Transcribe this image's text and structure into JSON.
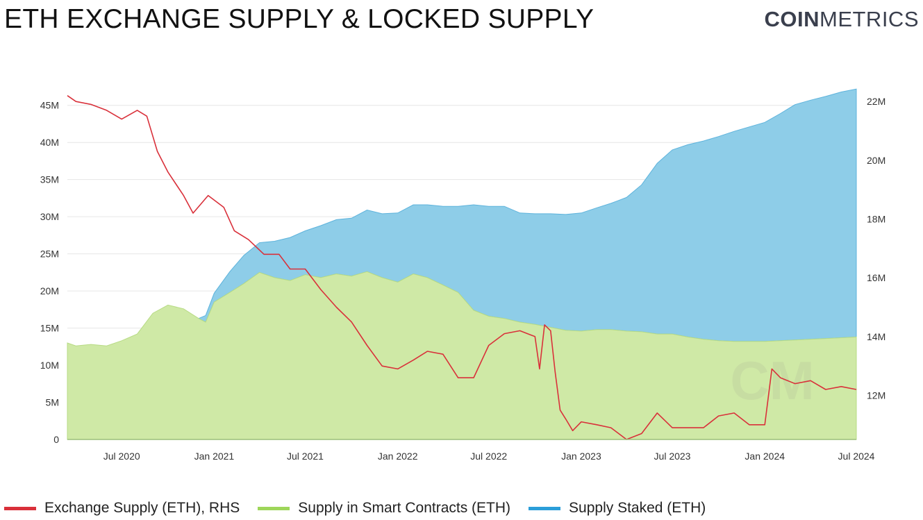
{
  "header": {
    "title": "ETH EXCHANGE SUPPLY & LOCKED SUPPLY",
    "logo_bold": "COIN",
    "logo_light": "METRICS"
  },
  "colors": {
    "exchange": "#d9303a",
    "contracts": "#cfe9a6",
    "contracts_legend": "#9ed65a",
    "staked": "#8ecde8",
    "staked_legend": "#2b9ed9",
    "grid": "#e6e6e6",
    "axis": "#666666"
  },
  "chart_data": {
    "type": "area",
    "title": "ETH EXCHANGE SUPPLY & LOCKED SUPPLY",
    "x_tick_labels": [
      "Jul 2020",
      "Jan 2021",
      "Jul 2021",
      "Jan 2022",
      "Jul 2022",
      "Jan 2023",
      "Jul 2023",
      "Jan 2024",
      "Jul 2024"
    ],
    "x_ticks": [
      "2020-07-01",
      "2021-01-01",
      "2021-07-01",
      "2022-01-01",
      "2022-07-01",
      "2023-01-01",
      "2023-07-01",
      "2024-01-01",
      "2024-07-01"
    ],
    "x_range": [
      "2020-03-15",
      "2024-07-01"
    ],
    "y_left": {
      "ticks": [
        0,
        5,
        10,
        15,
        20,
        25,
        30,
        35,
        40,
        45
      ],
      "tick_labels": [
        "0",
        "5M",
        "10M",
        "15M",
        "20M",
        "25M",
        "30M",
        "35M",
        "40M",
        "45M"
      ],
      "range": [
        0,
        47.5
      ],
      "unit": "M"
    },
    "y_right": {
      "ticks": [
        12,
        14,
        16,
        18,
        20,
        22
      ],
      "tick_labels": [
        "12M",
        "14M",
        "16M",
        "18M",
        "20M",
        "22M"
      ],
      "range": [
        10.5,
        22.5
      ],
      "unit": "M"
    },
    "grid": true,
    "legend_position": "bottom",
    "stacked": true,
    "series": [
      {
        "name": "Supply in Smart Contracts (ETH)",
        "axis": "left",
        "kind": "area",
        "points": [
          [
            "2020-03-15",
            13.0
          ],
          [
            "2020-04-01",
            12.6
          ],
          [
            "2020-05-01",
            12.8
          ],
          [
            "2020-06-01",
            12.6
          ],
          [
            "2020-07-01",
            13.3
          ],
          [
            "2020-08-01",
            14.2
          ],
          [
            "2020-09-01",
            17.0
          ],
          [
            "2020-10-01",
            18.1
          ],
          [
            "2020-11-01",
            17.6
          ],
          [
            "2020-12-01",
            16.3
          ],
          [
            "2020-12-15",
            15.8
          ],
          [
            "2021-01-01",
            18.5
          ],
          [
            "2021-02-01",
            19.8
          ],
          [
            "2021-03-01",
            21.0
          ],
          [
            "2021-04-01",
            22.5
          ],
          [
            "2021-05-01",
            21.8
          ],
          [
            "2021-06-01",
            21.4
          ],
          [
            "2021-07-01",
            22.2
          ],
          [
            "2021-08-01",
            21.8
          ],
          [
            "2021-09-01",
            22.3
          ],
          [
            "2021-10-01",
            22.0
          ],
          [
            "2021-11-01",
            22.6
          ],
          [
            "2021-12-01",
            21.8
          ],
          [
            "2022-01-01",
            21.2
          ],
          [
            "2022-02-01",
            22.3
          ],
          [
            "2022-03-01",
            21.8
          ],
          [
            "2022-04-01",
            20.8
          ],
          [
            "2022-05-01",
            19.8
          ],
          [
            "2022-06-01",
            17.4
          ],
          [
            "2022-07-01",
            16.6
          ],
          [
            "2022-08-01",
            16.3
          ],
          [
            "2022-09-01",
            15.8
          ],
          [
            "2022-10-01",
            15.5
          ],
          [
            "2022-11-01",
            15.1
          ],
          [
            "2022-12-01",
            14.7
          ],
          [
            "2023-01-01",
            14.6
          ],
          [
            "2023-02-01",
            14.8
          ],
          [
            "2023-03-01",
            14.8
          ],
          [
            "2023-04-01",
            14.6
          ],
          [
            "2023-05-01",
            14.5
          ],
          [
            "2023-06-01",
            14.2
          ],
          [
            "2023-07-01",
            14.2
          ],
          [
            "2023-08-01",
            13.8
          ],
          [
            "2023-09-01",
            13.5
          ],
          [
            "2023-10-01",
            13.3
          ],
          [
            "2023-11-01",
            13.2
          ],
          [
            "2023-12-01",
            13.2
          ],
          [
            "2024-01-01",
            13.2
          ],
          [
            "2024-02-01",
            13.3
          ],
          [
            "2024-03-01",
            13.4
          ],
          [
            "2024-04-01",
            13.5
          ],
          [
            "2024-05-01",
            13.6
          ],
          [
            "2024-06-01",
            13.7
          ],
          [
            "2024-07-01",
            13.8
          ]
        ]
      },
      {
        "name": "Supply Staked (ETH)",
        "axis": "left",
        "kind": "stacked-area",
        "points": [
          [
            "2020-12-01",
            0.0
          ],
          [
            "2020-12-15",
            0.9
          ],
          [
            "2021-01-01",
            1.2
          ],
          [
            "2021-02-01",
            2.8
          ],
          [
            "2021-03-01",
            3.8
          ],
          [
            "2021-04-01",
            4.0
          ],
          [
            "2021-05-01",
            4.9
          ],
          [
            "2021-06-01",
            5.8
          ],
          [
            "2021-07-01",
            5.9
          ],
          [
            "2021-08-01",
            7.0
          ],
          [
            "2021-09-01",
            7.3
          ],
          [
            "2021-10-01",
            7.8
          ],
          [
            "2021-11-01",
            8.3
          ],
          [
            "2021-12-01",
            8.6
          ],
          [
            "2022-01-01",
            9.3
          ],
          [
            "2022-02-01",
            9.3
          ],
          [
            "2022-03-01",
            9.8
          ],
          [
            "2022-04-01",
            10.6
          ],
          [
            "2022-05-01",
            11.6
          ],
          [
            "2022-06-01",
            14.2
          ],
          [
            "2022-07-01",
            14.8
          ],
          [
            "2022-08-01",
            15.1
          ],
          [
            "2022-09-01",
            14.7
          ],
          [
            "2022-10-01",
            14.9
          ],
          [
            "2022-11-01",
            15.3
          ],
          [
            "2022-12-01",
            15.6
          ],
          [
            "2023-01-01",
            15.9
          ],
          [
            "2023-02-01",
            16.4
          ],
          [
            "2023-03-01",
            17.0
          ],
          [
            "2023-04-01",
            18.0
          ],
          [
            "2023-05-01",
            19.8
          ],
          [
            "2023-06-01",
            23.0
          ],
          [
            "2023-07-01",
            24.8
          ],
          [
            "2023-08-01",
            25.9
          ],
          [
            "2023-09-01",
            26.7
          ],
          [
            "2023-10-01",
            27.5
          ],
          [
            "2023-11-01",
            28.3
          ],
          [
            "2023-12-01",
            28.9
          ],
          [
            "2024-01-01",
            29.5
          ],
          [
            "2024-02-01",
            30.6
          ],
          [
            "2024-03-01",
            31.7
          ],
          [
            "2024-04-01",
            32.2
          ],
          [
            "2024-05-01",
            32.6
          ],
          [
            "2024-06-01",
            33.1
          ],
          [
            "2024-07-01",
            33.4
          ]
        ]
      },
      {
        "name": "Exchange Supply (ETH), RHS",
        "axis": "right",
        "kind": "line",
        "points": [
          [
            "2020-03-15",
            22.2
          ],
          [
            "2020-04-01",
            22.0
          ],
          [
            "2020-05-01",
            21.9
          ],
          [
            "2020-06-01",
            21.7
          ],
          [
            "2020-07-01",
            21.4
          ],
          [
            "2020-08-01",
            21.7
          ],
          [
            "2020-08-20",
            21.5
          ],
          [
            "2020-09-10",
            20.3
          ],
          [
            "2020-10-01",
            19.6
          ],
          [
            "2020-11-01",
            18.8
          ],
          [
            "2020-11-20",
            18.2
          ],
          [
            "2020-12-20",
            18.8
          ],
          [
            "2021-01-20",
            18.4
          ],
          [
            "2021-02-10",
            17.6
          ],
          [
            "2021-03-10",
            17.3
          ],
          [
            "2021-04-10",
            16.8
          ],
          [
            "2021-05-10",
            16.8
          ],
          [
            "2021-06-01",
            16.3
          ],
          [
            "2021-07-01",
            16.3
          ],
          [
            "2021-08-01",
            15.6
          ],
          [
            "2021-09-01",
            15.0
          ],
          [
            "2021-10-01",
            14.5
          ],
          [
            "2021-11-01",
            13.7
          ],
          [
            "2021-12-01",
            13.0
          ],
          [
            "2022-01-01",
            12.9
          ],
          [
            "2022-02-01",
            13.2
          ],
          [
            "2022-03-01",
            13.5
          ],
          [
            "2022-04-01",
            13.4
          ],
          [
            "2022-05-01",
            12.6
          ],
          [
            "2022-06-01",
            12.6
          ],
          [
            "2022-07-01",
            13.7
          ],
          [
            "2022-08-01",
            14.1
          ],
          [
            "2022-09-01",
            14.2
          ],
          [
            "2022-10-01",
            14.0
          ],
          [
            "2022-10-10",
            12.9
          ],
          [
            "2022-10-20",
            14.4
          ],
          [
            "2022-11-01",
            14.2
          ],
          [
            "2022-11-10",
            12.8
          ],
          [
            "2022-11-20",
            11.5
          ],
          [
            "2022-12-01",
            11.2
          ],
          [
            "2022-12-15",
            10.8
          ],
          [
            "2023-01-01",
            11.1
          ],
          [
            "2023-02-01",
            11.0
          ],
          [
            "2023-03-01",
            10.9
          ],
          [
            "2023-04-01",
            10.5
          ],
          [
            "2023-05-01",
            10.7
          ],
          [
            "2023-06-01",
            11.4
          ],
          [
            "2023-07-01",
            10.9
          ],
          [
            "2023-08-01",
            10.9
          ],
          [
            "2023-09-01",
            10.9
          ],
          [
            "2023-10-01",
            11.3
          ],
          [
            "2023-11-01",
            11.4
          ],
          [
            "2023-12-01",
            11.0
          ],
          [
            "2024-01-01",
            11.0
          ],
          [
            "2024-01-15",
            12.9
          ],
          [
            "2024-02-01",
            12.6
          ],
          [
            "2024-03-01",
            12.4
          ],
          [
            "2024-04-01",
            12.5
          ],
          [
            "2024-05-01",
            12.2
          ],
          [
            "2024-06-01",
            12.3
          ],
          [
            "2024-07-01",
            12.2
          ]
        ]
      }
    ]
  },
  "legend": [
    {
      "label": "Exchange Supply (ETH), RHS"
    },
    {
      "label": "Supply in Smart Contracts (ETH)"
    },
    {
      "label": "Supply Staked (ETH)"
    }
  ]
}
